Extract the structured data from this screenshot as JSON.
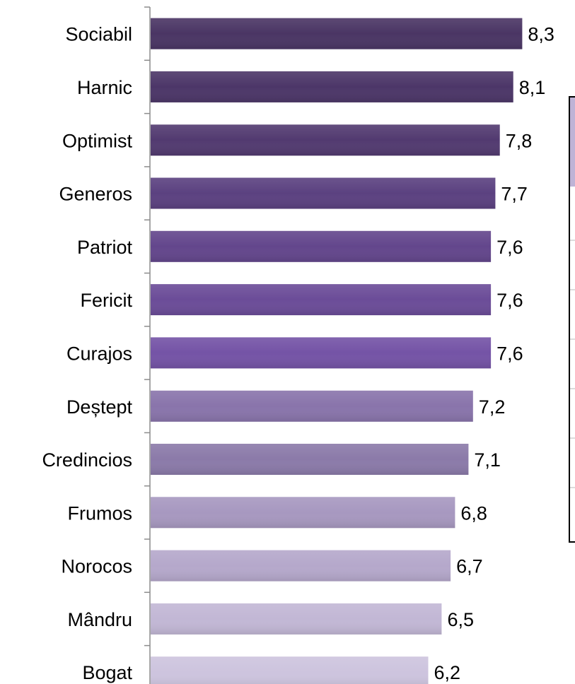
{
  "chart_data": {
    "type": "bar",
    "orientation": "horizontal",
    "categories": [
      "Sociabil",
      "Harnic",
      "Optimist",
      "Generos",
      "Patriot",
      "Fericit",
      "Curajos",
      "Deștept",
      "Credincios",
      "Frumos",
      "Norocos",
      "Mândru",
      "Bogat"
    ],
    "values": [
      8.3,
      8.1,
      7.8,
      7.7,
      7.6,
      7.6,
      7.6,
      7.2,
      7.1,
      6.8,
      6.7,
      6.5,
      6.2
    ],
    "value_labels": [
      "8,3",
      "8,1",
      "7,8",
      "7,7",
      "7,6",
      "7,6",
      "7,6",
      "7,2",
      "7,1",
      "6,8",
      "6,7",
      "6,5",
      "6,2"
    ],
    "bar_colors": [
      "#4a3564",
      "#4c3668",
      "#523a70",
      "#5b4180",
      "#63468c",
      "#6b4c98",
      "#7453a6",
      "#8974ab",
      "#8b7aa9",
      "#a798c0",
      "#b5a8cb",
      "#c2b7d5",
      "#cdc4de"
    ],
    "xlim": [
      0,
      8.3
    ],
    "title": "",
    "xlabel": "",
    "ylabel": "",
    "grid": false
  }
}
